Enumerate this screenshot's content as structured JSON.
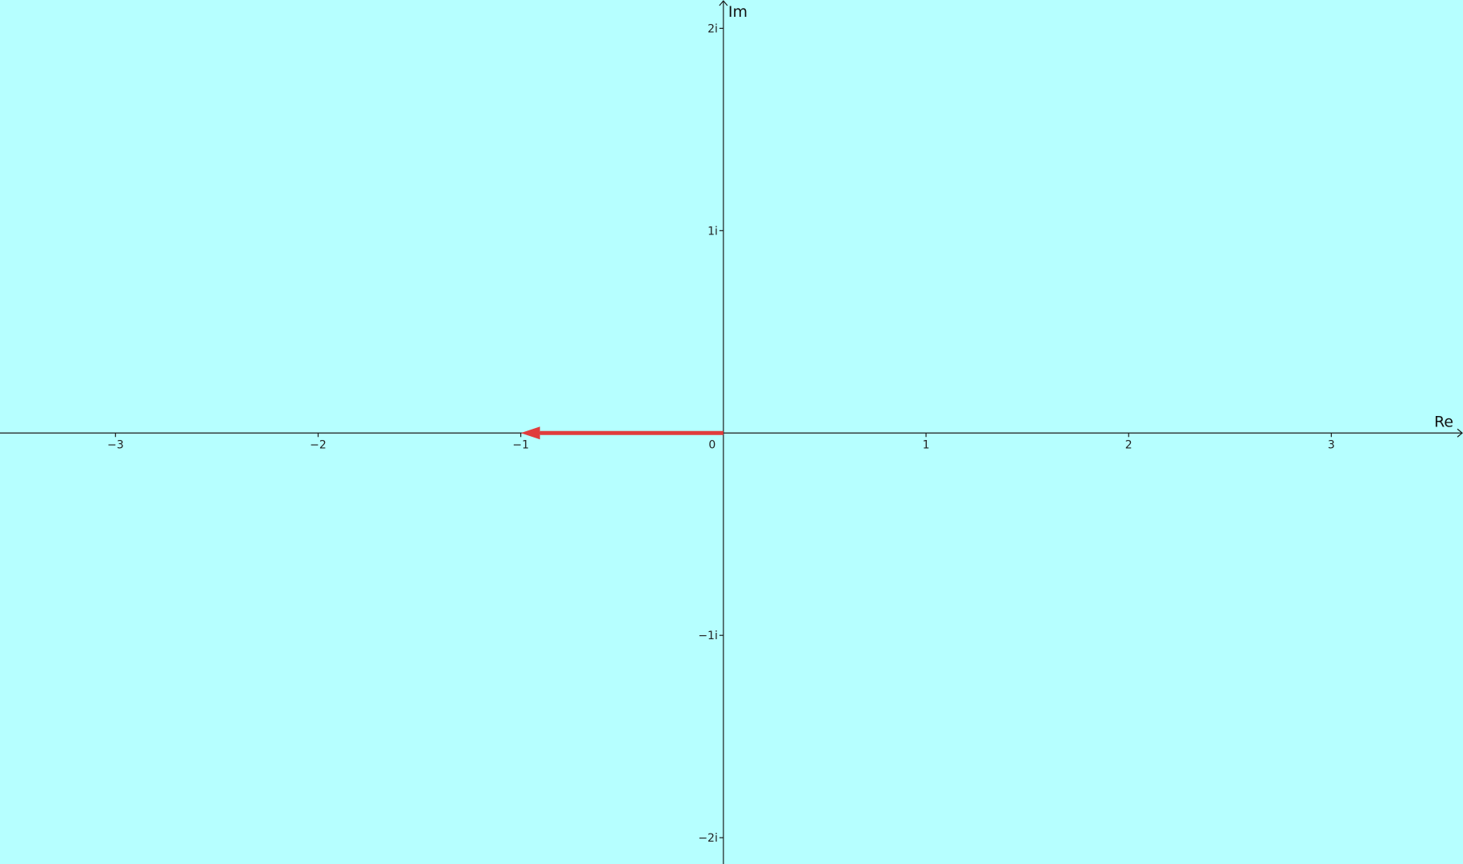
{
  "colors": {
    "background": "#b6ffff",
    "axis": "#1a1a1a",
    "vector": "#e03c3c"
  },
  "plane": {
    "x_axis_label": "Re",
    "y_axis_label": "Im",
    "x_range": [
      -3.57,
      3.65
    ],
    "y_range": [
      -2.13,
      2.14
    ],
    "x_ticks": [
      {
        "value": -3,
        "label": "−3"
      },
      {
        "value": -2,
        "label": "−2"
      },
      {
        "value": -1,
        "label": "−1"
      },
      {
        "value": 1,
        "label": "1"
      },
      {
        "value": 2,
        "label": "2"
      },
      {
        "value": 3,
        "label": "3"
      }
    ],
    "y_ticks": [
      {
        "value": 2,
        "label": "2i"
      },
      {
        "value": 1,
        "label": "1i"
      },
      {
        "value": -1,
        "label": "−1i"
      },
      {
        "value": -2,
        "label": "−2i"
      }
    ],
    "origin_label": "0"
  },
  "vector": {
    "from": [
      0,
      0
    ],
    "to": [
      -1,
      0
    ]
  }
}
